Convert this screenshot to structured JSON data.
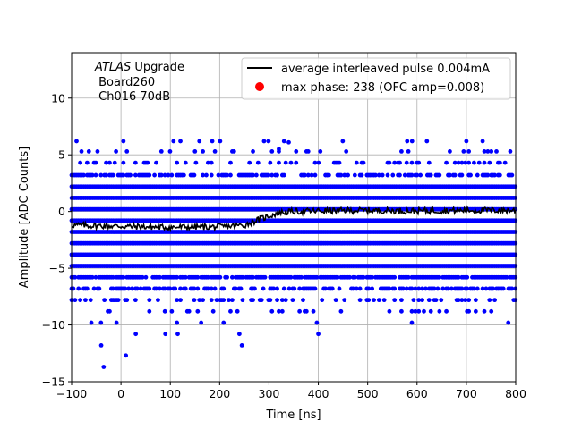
{
  "chart_data": {
    "type": "scatter",
    "xlabel": "Time [ns]",
    "ylabel": "Amplitude [ADC Counts]",
    "xlim": [
      -100,
      800
    ],
    "ylim": [
      -15,
      14
    ],
    "xticks": [
      -100,
      0,
      100,
      200,
      300,
      400,
      500,
      600,
      700,
      800
    ],
    "yticks": [
      -15,
      -10,
      -5,
      0,
      5,
      10
    ],
    "grid": true,
    "legend_position": "top-right",
    "annotation": {
      "line1_italic": "ATLAS",
      "line1_rest": " Upgrade",
      "line2": " Board260",
      "line3": " Ch016 70dB"
    },
    "colors": {
      "samples": "#0000ff",
      "pulse": "#000000",
      "max_phase": "#ff0000"
    },
    "series": [
      {
        "name": "average interleaved pulse 0.004mA",
        "kind": "line",
        "x_step": 2,
        "points": [
          [
            -100,
            -1.2
          ],
          [
            -50,
            -1.25
          ],
          [
            0,
            -1.3
          ],
          [
            50,
            -1.35
          ],
          [
            100,
            -1.4
          ],
          [
            150,
            -1.35
          ],
          [
            200,
            -1.35
          ],
          [
            250,
            -1.2
          ],
          [
            280,
            -0.7
          ],
          [
            300,
            -0.4
          ],
          [
            320,
            -0.1
          ],
          [
            350,
            0.0
          ],
          [
            400,
            0.05
          ],
          [
            500,
            0.1
          ],
          [
            600,
            0.05
          ],
          [
            700,
            0.1
          ],
          [
            800,
            0.1
          ]
        ]
      },
      {
        "name": "max phase: 238 (OFC amp=0.008)",
        "kind": "point",
        "x": 238,
        "y": 0.008
      }
    ],
    "sample_levels": [
      {
        "y": 6.2,
        "density": 0.03
      },
      {
        "y": 5.3,
        "density": 0.08
      },
      {
        "y": 4.3,
        "density": 0.25
      },
      {
        "y": 3.2,
        "density": 0.55
      },
      {
        "y": 2.2,
        "density": 1.0
      },
      {
        "y": 1.2,
        "density": 1.0
      },
      {
        "y": 0.2,
        "density": 1.0
      },
      {
        "y": -0.8,
        "density": 1.0
      },
      {
        "y": -1.8,
        "density": 1.0
      },
      {
        "y": -2.8,
        "density": 1.0
      },
      {
        "y": -3.8,
        "density": 1.0
      },
      {
        "y": -4.8,
        "density": 1.0
      },
      {
        "y": -5.8,
        "density": 0.85
      },
      {
        "y": -6.8,
        "density": 0.55
      },
      {
        "y": -7.8,
        "density": 0.25
      },
      {
        "y": -8.8,
        "density": 0.12
      },
      {
        "y": -9.8,
        "density": 0.03
      }
    ],
    "outlier_points": [
      [
        -90,
        6.2
      ],
      [
        -80,
        5.3
      ],
      [
        5,
        6.2
      ],
      [
        -10,
        5.3
      ],
      [
        185,
        6.2
      ],
      [
        150,
        5.3
      ],
      [
        290,
        6.2
      ],
      [
        320,
        5.5
      ],
      [
        340,
        6.1
      ],
      [
        580,
        6.2
      ],
      [
        590,
        6.2
      ],
      [
        620,
        6.2
      ],
      [
        700,
        6.2
      ],
      [
        -40,
        -11.8
      ],
      [
        -35,
        -13.7
      ],
      [
        10,
        -12.7
      ],
      [
        30,
        -10.8
      ],
      [
        90,
        -10.8
      ],
      [
        115,
        -10.8
      ],
      [
        240,
        -10.8
      ],
      [
        245,
        -11.8
      ],
      [
        400,
        -10.8
      ],
      [
        -60,
        -9.8
      ],
      [
        785,
        -9.8
      ]
    ]
  }
}
